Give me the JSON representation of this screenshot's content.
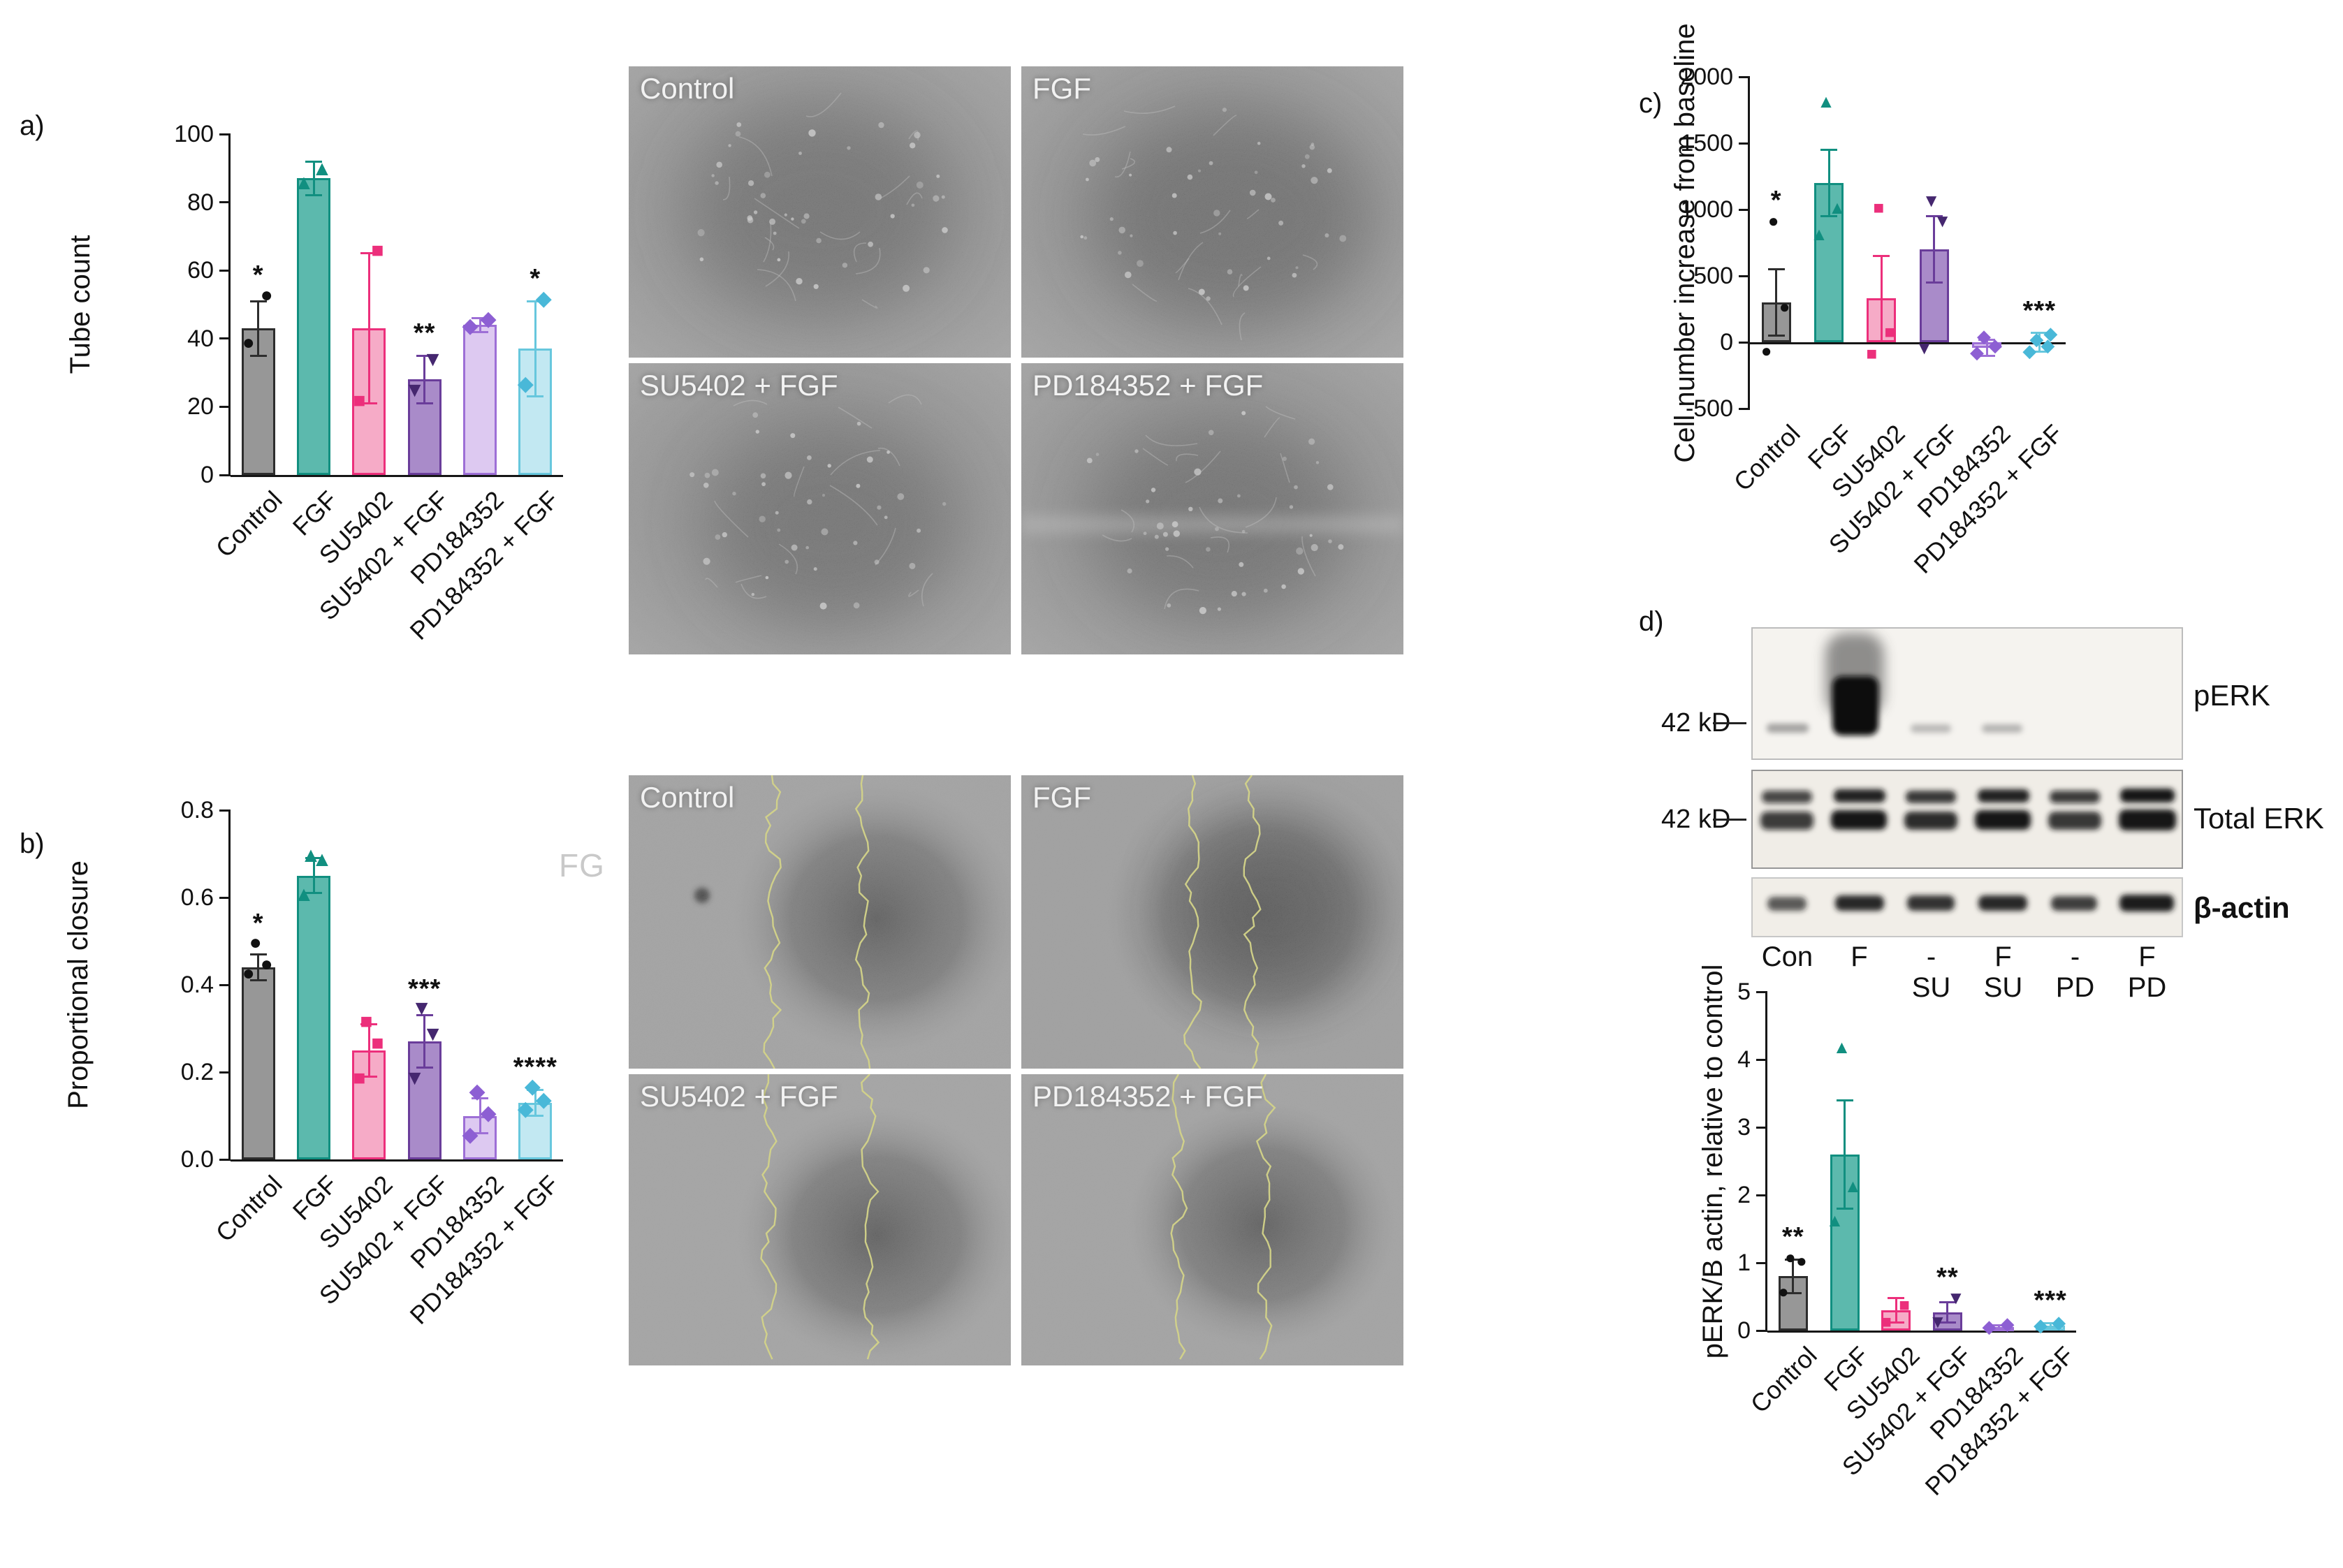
{
  "panels": {
    "a": "a)",
    "b": "b)",
    "c": "c)",
    "d": "d)"
  },
  "groups": [
    {
      "name": "Control",
      "border": "#2d2d2d",
      "fill": "#979797",
      "marker": "●",
      "marker_color": "#111111"
    },
    {
      "name": "FGF",
      "border": "#118f80",
      "fill": "#5cb9ad",
      "marker": "▲",
      "marker_color": "#118f80"
    },
    {
      "name": "SU5402",
      "border": "#ec2f7b",
      "fill": "#f6abc7",
      "marker": "■",
      "marker_color": "#ec2f7b"
    },
    {
      "name": "SU5402 + FGF",
      "border": "#6a3d9a",
      "fill": "#a98bc9",
      "marker": "▼",
      "marker_color": "#45276f"
    },
    {
      "name": "PD184352",
      "border": "#9d6fd6",
      "fill": "#ddc9f1",
      "marker": "◆",
      "marker_color": "#8d5fd3"
    },
    {
      "name": "PD184352 + FGF",
      "border": "#67c7dd",
      "fill": "#c2e8f2",
      "marker": "◆",
      "marker_color": "#49b8d8"
    }
  ],
  "chart_data": [
    {
      "type": "bar",
      "panel": "a",
      "ylabel": "Tube count",
      "ylim": [
        0,
        100
      ],
      "ytick_vals": [
        0,
        20,
        40,
        60,
        80,
        100
      ],
      "ytick_labels": [
        "0",
        "20",
        "40",
        "60",
        "80",
        "100"
      ],
      "categories": [
        "Control",
        "FGF",
        "SU5402",
        "SU5402 + FGF",
        "PD184352",
        "PD184352 + FGF"
      ],
      "values": [
        43,
        87,
        43,
        28,
        44,
        37
      ],
      "errors": [
        8,
        5,
        22,
        7,
        2,
        14
      ],
      "points": [
        [
          38,
          52
        ],
        [
          85,
          89
        ],
        [
          21,
          65
        ],
        [
          24,
          33
        ],
        [
          43,
          45
        ],
        [
          26,
          51
        ]
      ],
      "sig": [
        "*",
        "",
        "",
        "**",
        "",
        "*"
      ]
    },
    {
      "type": "bar",
      "panel": "b",
      "ylabel": "Proportional closure",
      "ylim": [
        0,
        0.8
      ],
      "ytick_vals": [
        0,
        0.2,
        0.4,
        0.6,
        0.8
      ],
      "ytick_labels": [
        "0.0",
        "0.2",
        "0.4",
        "0.6",
        "0.8"
      ],
      "categories": [
        "Control",
        "FGF",
        "SU5402",
        "SU5402 + FGF",
        "PD184352",
        "PD184352 + FGF"
      ],
      "values": [
        0.44,
        0.65,
        0.25,
        0.27,
        0.1,
        0.13
      ],
      "errors": [
        0.03,
        0.04,
        0.06,
        0.06,
        0.04,
        0.03
      ],
      "points": [
        [
          0.42,
          0.44,
          0.49
        ],
        [
          0.6,
          0.68,
          0.69
        ],
        [
          0.18,
          0.26,
          0.31
        ],
        [
          0.18,
          0.28,
          0.34
        ],
        [
          0.05,
          0.1,
          0.15
        ],
        [
          0.11,
          0.13,
          0.16
        ]
      ],
      "sig": [
        "*",
        "",
        "",
        "***",
        "",
        "****"
      ]
    },
    {
      "type": "bar",
      "panel": "c",
      "ylabel": "Cell number increase from baseline",
      "ylim": [
        -500,
        2000
      ],
      "ytick_vals": [
        -500,
        0,
        500,
        1000,
        1500,
        2000
      ],
      "ytick_labels": [
        "-500",
        "0",
        "500",
        "1000",
        "1500",
        "2000"
      ],
      "categories": [
        "Control",
        "FGF",
        "SU5402",
        "SU5402 + FGF",
        "PD184352",
        "PD184352 + FGF"
      ],
      "values": [
        300,
        1200,
        330,
        700,
        -40,
        0
      ],
      "errors": [
        250,
        250,
        320,
        250,
        60,
        70
      ],
      "points": [
        [
          -80,
          250,
          900
        ],
        [
          800,
          1000,
          1800
        ],
        [
          -100,
          60,
          1000
        ],
        [
          -60,
          900,
          1050
        ],
        [
          -90,
          -40,
          30
        ],
        [
          -80,
          -40,
          10,
          50
        ]
      ],
      "sig": [
        "*",
        "",
        "",
        "",
        "",
        "***"
      ]
    },
    {
      "type": "bar",
      "panel": "d",
      "ylabel": "pERK/B actin, relative to control",
      "ylim": [
        0,
        5
      ],
      "ytick_vals": [
        0,
        1,
        2,
        3,
        4,
        5
      ],
      "ytick_labels": [
        "0",
        "1",
        "2",
        "3",
        "4",
        "5"
      ],
      "categories": [
        "Control",
        "FGF",
        "SU5402",
        "SU5402 + FGF",
        "PD184352",
        "PD184352 + FGF"
      ],
      "values": [
        0.8,
        2.6,
        0.3,
        0.27,
        0.05,
        0.07
      ],
      "errors": [
        0.25,
        0.8,
        0.18,
        0.15,
        0.03,
        0.04
      ],
      "points": [
        [
          0.55,
          1.0,
          1.05
        ],
        [
          1.6,
          2.1,
          4.15
        ],
        [
          0.1,
          0.35
        ],
        [
          0.1,
          0.45
        ],
        [
          0.03,
          0.07
        ],
        [
          0.05,
          0.09
        ]
      ],
      "sig": [
        "**",
        "",
        "",
        "**",
        "",
        "***"
      ]
    }
  ],
  "micro": {
    "tube_assay": {
      "images": [
        {
          "label": "Control"
        },
        {
          "label": "FGF"
        },
        {
          "label": "SU5402 + FGF"
        },
        {
          "label": "PD184352 + FGF"
        }
      ]
    },
    "scratch_assay": {
      "images": [
        {
          "label": "Control"
        },
        {
          "label": "FGF"
        },
        {
          "label": "SU5402 + FGF"
        },
        {
          "label": "PD184352 + FGF"
        }
      ]
    }
  },
  "western": {
    "bands": [
      {
        "label": "pERK",
        "size_marker": "42 kD"
      },
      {
        "label": "Total ERK",
        "size_marker": "42 kD"
      },
      {
        "label": "β-actin",
        "size_marker": ""
      }
    ],
    "lane_labels_row1": [
      "Con",
      "F",
      "-",
      "F",
      "-",
      "F"
    ],
    "lane_labels_row2": [
      "",
      "",
      "SU",
      "SU",
      "PD",
      "PD"
    ]
  },
  "watermark": "FG"
}
